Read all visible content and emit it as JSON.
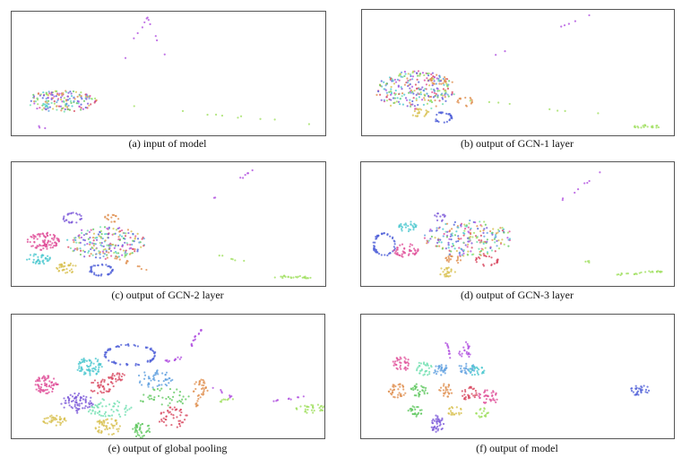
{
  "figure": {
    "panels": [
      {
        "id": "a",
        "caption": "(a) input of model"
      },
      {
        "id": "b",
        "caption": "(b) output of GCN-1 layer"
      },
      {
        "id": "c",
        "caption": "(c) output of GCN-2 layer"
      },
      {
        "id": "d",
        "caption": "(d) output of GCN-3 layer"
      },
      {
        "id": "e",
        "caption": "(e) output of global pooling"
      },
      {
        "id": "f",
        "caption": "(f) output of model"
      }
    ],
    "colors": {
      "pink": "#e0509a",
      "cyan": "#4cc8d0",
      "blue": "#5060d8",
      "purple": "#b050e0",
      "violet": "#7a58d8",
      "red": "#d84860",
      "orange": "#e09050",
      "yellow": "#d8c050",
      "green": "#60c860",
      "mint": "#70e0b0",
      "lime": "#a0e060",
      "lightblue": "#60a0e0"
    }
  }
}
